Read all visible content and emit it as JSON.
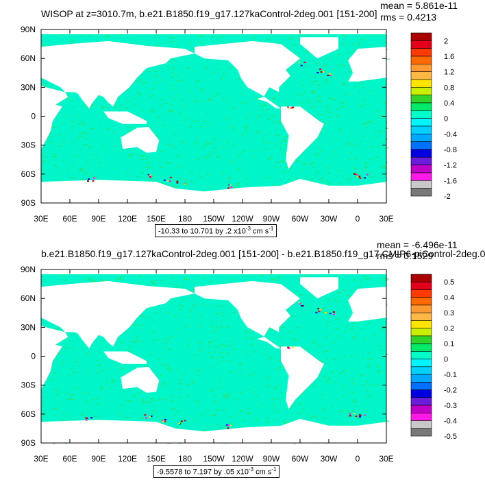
{
  "chart_data": [
    {
      "type": "heatmap",
      "title": "WISOP at z=3010.7m, b.e21.B1850.f19_g17.127kaControl-2deg.001 [151-200]",
      "stats": {
        "mean": "mean = 5.861e-11",
        "rms": "rms = 0.4213"
      },
      "x_ticks": [
        "30E",
        "60E",
        "90E",
        "120E",
        "150E",
        "180",
        "150W",
        "120W",
        "90W",
        "60W",
        "30W",
        "0",
        "30E"
      ],
      "y_ticks": [
        "90N",
        "60N",
        "30N",
        "0",
        "30S",
        "60S",
        "90S"
      ],
      "range_label": {
        "text": "-10.33 to 10.701 by .2 x10",
        "exp": "-3",
        "unit": " cm s",
        "unit_exp": "-1"
      },
      "colorbar": {
        "labels": [
          "2",
          "1.6",
          "1.2",
          "0.8",
          "0.4",
          "0",
          "-0.4",
          "-0.8",
          "-1.2",
          "-1.6",
          "-2"
        ],
        "colors": [
          "#aa0000",
          "#e4001b",
          "#ff3a00",
          "#ff6a00",
          "#ff9a33",
          "#ffb845",
          "#ffe400",
          "#c8f000",
          "#31d32b",
          "#00ea6a",
          "#00ffc8",
          "#00f5ff",
          "#00d2ff",
          "#00a8ff",
          "#0070ff",
          "#0000e0",
          "#6a1ddb",
          "#c000c8",
          "#ff1ae8",
          "#c8c8c8",
          "#787878"
        ]
      }
    },
    {
      "type": "heatmap",
      "title": "b.e21.B1850.f19_g17.127kaControl-2deg.001 [151-200] - b.e21.B1850.f19_g17.CMIP6-piControl-2deg.0",
      "stats": {
        "mean": "mean = -6.496e-11",
        "rms": "rms = 0.1529"
      },
      "x_ticks": [
        "30E",
        "60E",
        "90E",
        "120E",
        "150E",
        "180",
        "150W",
        "120W",
        "90W",
        "60W",
        "30W",
        "0",
        "30E"
      ],
      "y_ticks": [
        "90N",
        "60N",
        "30N",
        "0",
        "30S",
        "60S",
        "90S"
      ],
      "range_label": {
        "text": "-9.5578 to 7.197 by .05 x10",
        "exp": "-3",
        "unit": " cm s",
        "unit_exp": "-1"
      },
      "colorbar": {
        "labels": [
          "0.5",
          "0.4",
          "0.3",
          "0.2",
          "0.1",
          "0",
          "-0.1",
          "-0.2",
          "-0.3",
          "-0.4",
          "-0.5"
        ],
        "colors": [
          "#aa0000",
          "#e4001b",
          "#ff3a00",
          "#ff6a00",
          "#ff9a33",
          "#ffb845",
          "#ffe400",
          "#c8f000",
          "#31d32b",
          "#00ea6a",
          "#00ffc8",
          "#00f5ff",
          "#00d2ff",
          "#00a8ff",
          "#0070ff",
          "#0000e0",
          "#6a1ddb",
          "#c000c8",
          "#ff1ae8",
          "#c8c8c8",
          "#787878"
        ]
      }
    }
  ],
  "colors": {
    "ocean_base": "#00f5c8",
    "ocean_alt": "#30e060",
    "land": "#ffffff"
  }
}
